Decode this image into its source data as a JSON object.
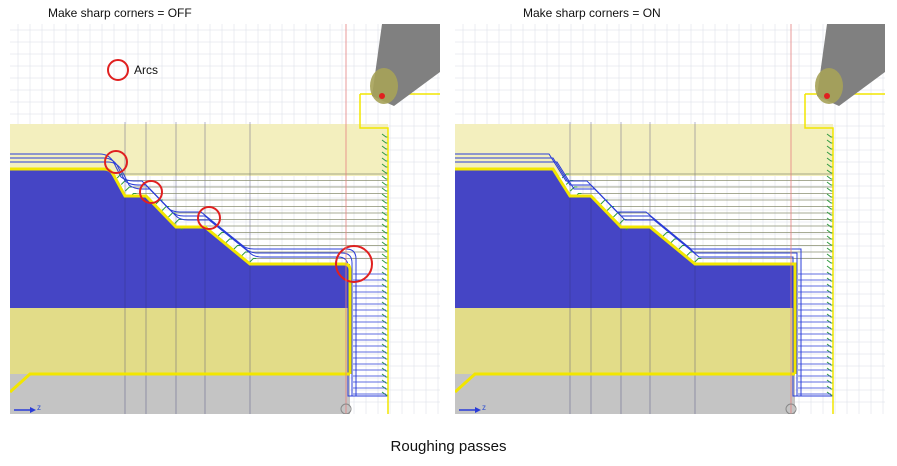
{
  "left_view": {
    "title": "Make sharp corners = OFF",
    "legend_label": "Arcs"
  },
  "right_view": {
    "title": "Make sharp corners = ON"
  },
  "caption": "Roughing passes",
  "axis_label": "z",
  "colors": {
    "part": "#4545c5",
    "stock": "#e2dc88",
    "stock_light": "#f3efbe",
    "chuck": "#c4c4c4",
    "profile": "#f2e600",
    "pass_blue": "#2a3cd8",
    "pass_green": "#2e9a40",
    "highlight": "#e02020",
    "tool": "#808080",
    "insert": "#a6a258",
    "grid": "#d8dde6"
  },
  "roughing_passes_count": 14
}
